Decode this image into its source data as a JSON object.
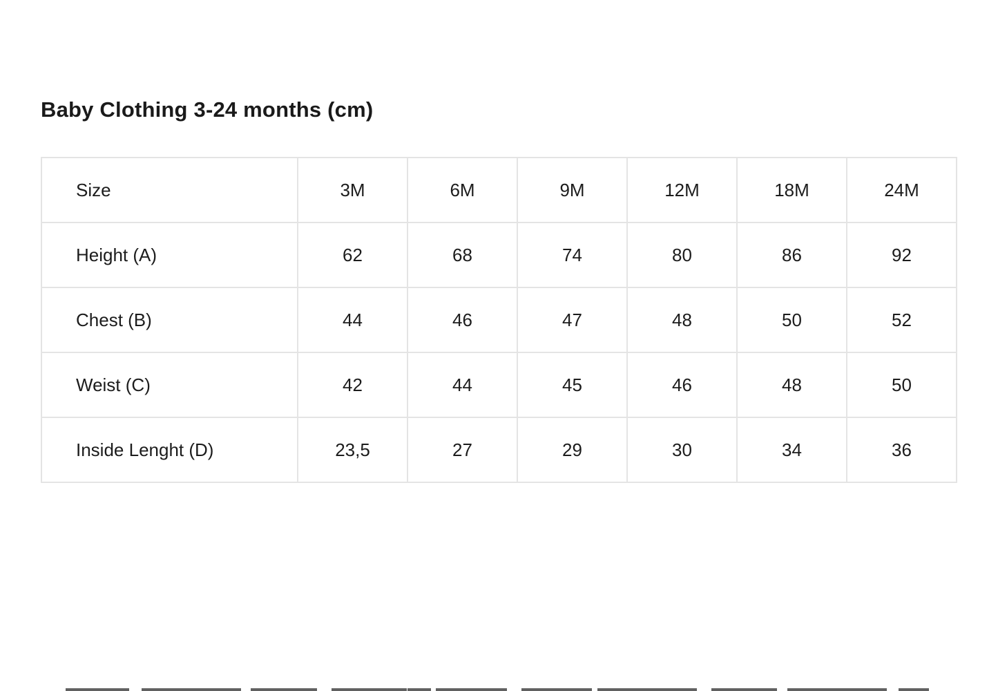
{
  "page": {
    "background_color": "#ffffff",
    "text_color": "#1c1c1c",
    "table_border_color": "#e4e4e4"
  },
  "chart_data": {
    "type": "table",
    "title": "Baby Clothing 3-24 months (cm)",
    "columns": [
      "Size",
      "3M",
      "6M",
      "9M",
      "12M",
      "18M",
      "24M"
    ],
    "rows": [
      {
        "label": "Height (A)",
        "values": [
          "62",
          "68",
          "74",
          "80",
          "86",
          "92"
        ]
      },
      {
        "label": "Chest (B)",
        "values": [
          "44",
          "46",
          "47",
          "48",
          "50",
          "52"
        ]
      },
      {
        "label": "Weist (C)",
        "values": [
          "42",
          "44",
          "45",
          "46",
          "48",
          "50"
        ]
      },
      {
        "label": "Inside Lenght (D)",
        "values": [
          "23,5",
          "27",
          "29",
          "30",
          "34",
          "36"
        ]
      }
    ]
  }
}
